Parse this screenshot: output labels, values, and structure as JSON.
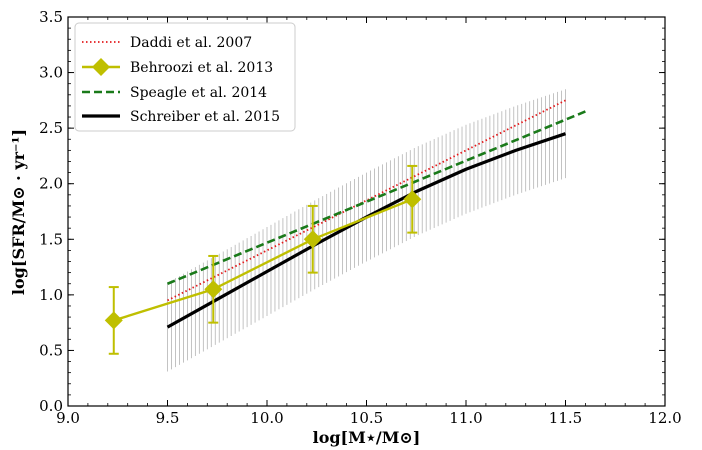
{
  "chart_data": {
    "type": "line",
    "title": "",
    "xlabel": "log[M⋆/M⊙]",
    "ylabel": "log[SFR/M⊙ · yr⁻¹]",
    "xlim": [
      9.0,
      12.0
    ],
    "ylim": [
      0.0,
      3.5
    ],
    "xticks": [
      9.0,
      9.5,
      10.0,
      10.5,
      11.0,
      11.5,
      12.0
    ],
    "yticks": [
      0.0,
      0.5,
      1.0,
      1.5,
      2.0,
      2.5,
      3.0,
      3.5
    ],
    "xtick_labels": [
      "9.0",
      "9.5",
      "10.0",
      "10.5",
      "11.0",
      "11.5",
      "12.0"
    ],
    "ytick_labels": [
      "0.0",
      "0.5",
      "1.0",
      "1.5",
      "2.0",
      "2.5",
      "3.0",
      "3.5"
    ],
    "grid": false,
    "legend_position": "top-left",
    "series": [
      {
        "name": "Daddi et al. 2007",
        "style": "dotted",
        "color": "#e41a1c",
        "x": [
          9.5,
          11.5
        ],
        "y": [
          0.95,
          2.75
        ]
      },
      {
        "name": "Behroozi et al. 2013",
        "style": "solid-diamond-errorbar",
        "color": "#bfbf00",
        "x": [
          9.23,
          9.73,
          10.23,
          10.73
        ],
        "y": [
          0.77,
          1.05,
          1.5,
          1.86
        ],
        "yerr": [
          0.3,
          0.3,
          0.3,
          0.3
        ]
      },
      {
        "name": "Speagle et al. 2014",
        "style": "dashed",
        "color": "#1a7a1a",
        "x": [
          9.5,
          11.6
        ],
        "y": [
          1.1,
          2.65
        ]
      },
      {
        "name": "Schreiber et al. 2015",
        "style": "solid",
        "color": "#000000",
        "x": [
          9.5,
          9.75,
          10.0,
          10.25,
          10.5,
          10.75,
          11.0,
          11.25,
          11.5
        ],
        "y": [
          0.71,
          0.96,
          1.21,
          1.46,
          1.7,
          1.93,
          2.13,
          2.3,
          2.45
        ],
        "scatter_band": 0.4
      }
    ]
  }
}
